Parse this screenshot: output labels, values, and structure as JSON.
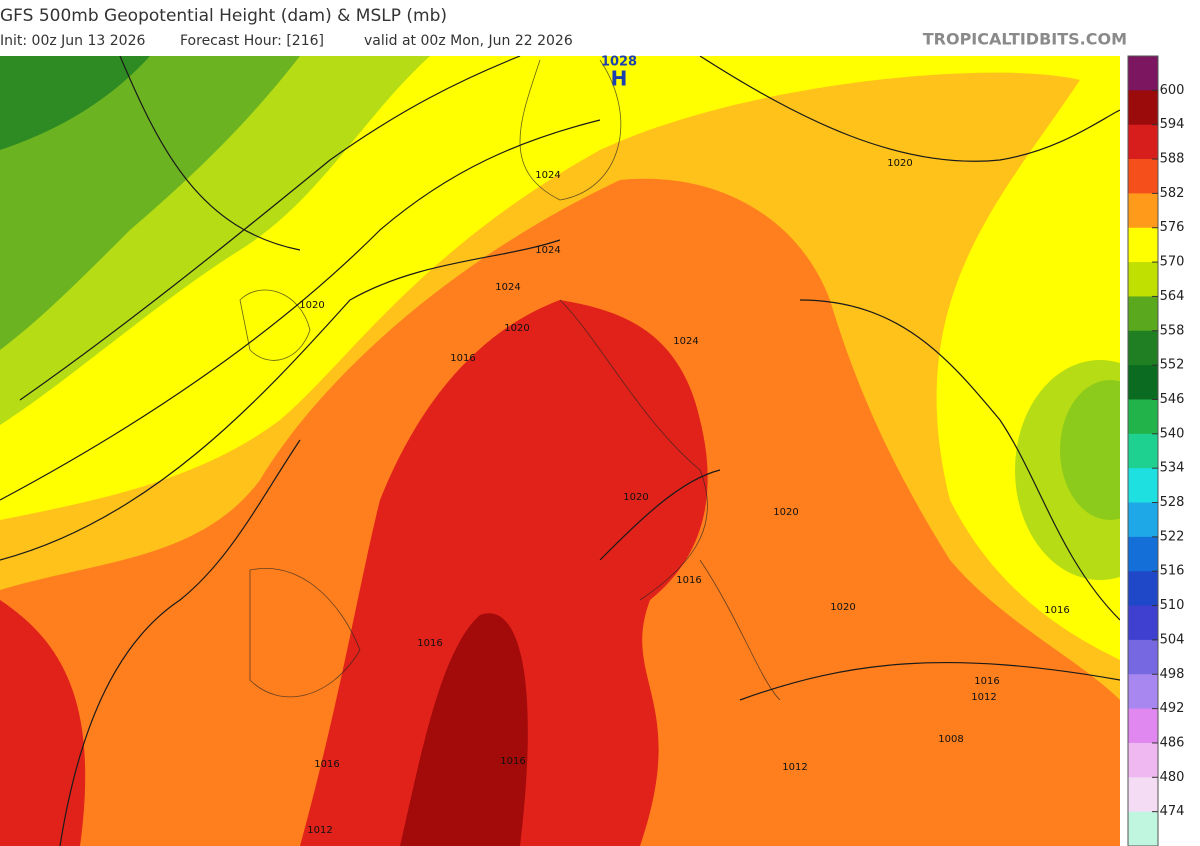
{
  "header": {
    "title": "GFS 500mb Geopotential Height (dam) & MSLP (mb)",
    "init": "Init: 00z Jun 13 2026",
    "forecast_hour": "Forecast Hour: [216]",
    "valid": "valid at 00z Mon, Jun 22 2026",
    "site": "TROPICALTIDBITS.COM"
  },
  "high": {
    "letter": "H",
    "pressure": "1028"
  },
  "isobar_labels": [
    "1024",
    "1020",
    "1024",
    "1024",
    "1020",
    "1020",
    "1016",
    "1024",
    "1020",
    "1020",
    "1016",
    "1020",
    "1016",
    "1016",
    "1012",
    "1016",
    "1008",
    "1012",
    "1016",
    "1016",
    "1012"
  ],
  "legend": {
    "labels": [
      600,
      594,
      588,
      582,
      576,
      570,
      564,
      558,
      552,
      546,
      540,
      534,
      528,
      522,
      516,
      510,
      504,
      498,
      492,
      486,
      480,
      474
    ]
  }
}
